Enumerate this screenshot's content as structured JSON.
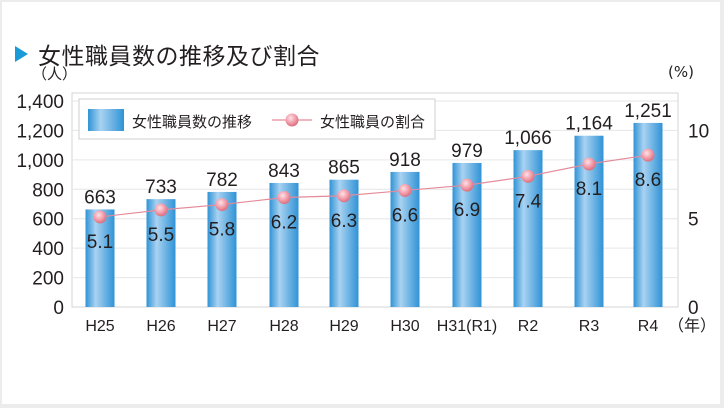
{
  "title": "女性職員数の推移及び割合",
  "left_unit": "（人）",
  "right_unit": "(%)",
  "x_unit": "（年）",
  "legend": {
    "bar_label": "女性職員数の推移",
    "line_label": "女性職員の割合"
  },
  "colors": {
    "bar_light": "#a9d2f1",
    "bar_dark": "#2f93d6",
    "line": "#e58a9a",
    "marker": "#f29aa8",
    "title_marker": "#1a9bd7",
    "grid": "#e6e6e6"
  },
  "chart_data": {
    "type": "bar+line",
    "title": "女性職員数の推移及び割合",
    "categories": [
      "H25",
      "H26",
      "H27",
      "H28",
      "H29",
      "H30",
      "H31(R1)",
      "R2",
      "R3",
      "R4"
    ],
    "series": [
      {
        "name": "女性職員数の推移",
        "type": "bar",
        "axis": "left",
        "values": [
          663,
          733,
          782,
          843,
          865,
          918,
          979,
          1066,
          1164,
          1251
        ],
        "labels": [
          "663",
          "733",
          "782",
          "843",
          "865",
          "918",
          "979",
          "1,066",
          "1,164",
          "1,251"
        ]
      },
      {
        "name": "女性職員の割合",
        "type": "line",
        "axis": "right",
        "values": [
          5.1,
          5.5,
          5.8,
          6.2,
          6.3,
          6.6,
          6.9,
          7.4,
          8.1,
          8.6
        ],
        "labels": [
          "5.1",
          "5.5",
          "5.8",
          "6.2",
          "6.3",
          "6.6",
          "6.9",
          "7.4",
          "8.1",
          "8.6"
        ]
      }
    ],
    "ylabel": "（人）",
    "y2label": "(%)",
    "xlabel": "（年）",
    "ylim": [
      0,
      1400
    ],
    "y2lim": [
      0,
      11.67
    ],
    "yticks": [
      "0",
      "200",
      "400",
      "600",
      "800",
      "1,000",
      "1,200",
      "1,400"
    ],
    "y2ticks": [
      "0",
      "5",
      "10"
    ],
    "grid": true,
    "legend_position": "top-left inside"
  }
}
